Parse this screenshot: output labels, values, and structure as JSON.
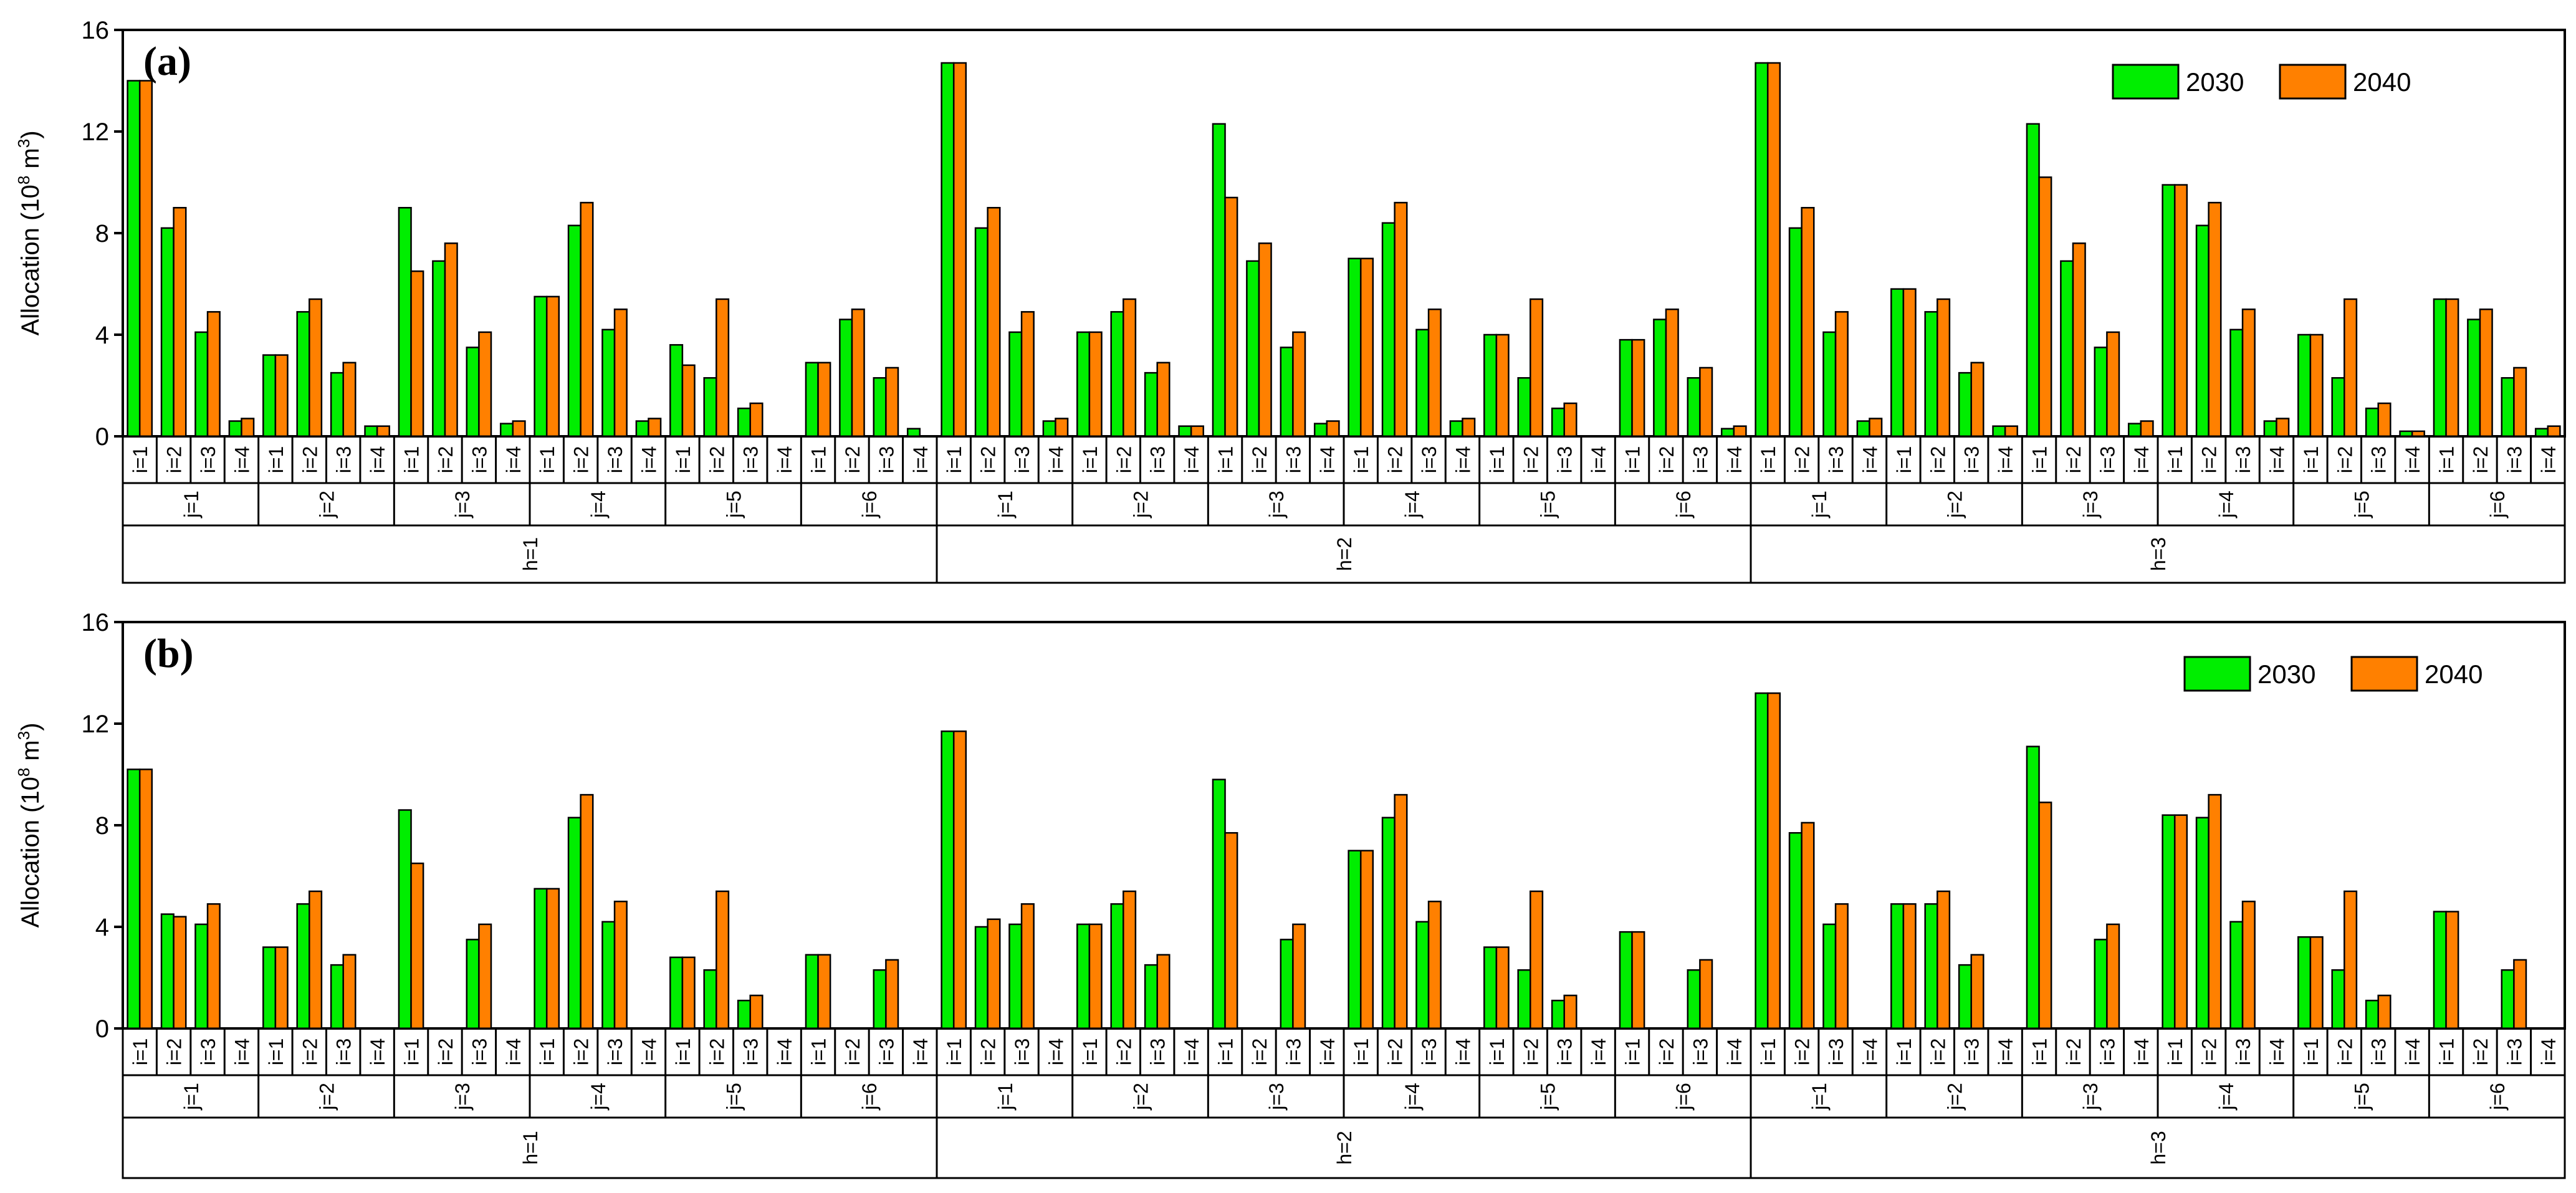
{
  "colors": {
    "series_2030": "#00ee00",
    "series_2040": "#ff8000",
    "axis": "#000000"
  },
  "chart_data": [
    {
      "type": "bar",
      "panel_label": "(a)",
      "ylabel": "Allocation (10",
      "ylabel_sup": "8",
      "ylabel_unit_tail": " m",
      "ylabel_unit_sup": "3",
      "ylabel_close": ")",
      "ylim": [
        0,
        16
      ],
      "yticks": [
        0,
        4,
        8,
        12,
        16
      ],
      "legend_position": "top-right",
      "h_labels": [
        "h=1",
        "h=2",
        "h=3"
      ],
      "j_labels": [
        "j=1",
        "j=2",
        "j=3",
        "j=4",
        "j=5",
        "j=6"
      ],
      "i_labels": [
        "i=1",
        "i=2",
        "i=3",
        "i=4"
      ],
      "series": [
        {
          "name": "2030",
          "values": [
            14.0,
            8.2,
            4.1,
            0.6,
            3.2,
            4.9,
            2.5,
            0.4,
            9.0,
            6.9,
            3.5,
            0.5,
            5.5,
            8.3,
            4.2,
            0.6,
            3.6,
            2.3,
            1.1,
            0.0,
            2.9,
            4.6,
            2.3,
            0.3,
            14.7,
            8.2,
            4.1,
            0.6,
            4.1,
            4.9,
            2.5,
            0.4,
            12.3,
            6.9,
            3.5,
            0.5,
            7.0,
            8.4,
            4.2,
            0.6,
            4.0,
            2.3,
            1.1,
            0.0,
            3.8,
            4.6,
            2.3,
            0.3,
            14.7,
            8.2,
            4.1,
            0.6,
            5.8,
            4.9,
            2.5,
            0.4,
            12.3,
            6.9,
            3.5,
            0.5,
            9.9,
            8.3,
            4.2,
            0.6,
            4.0,
            2.3,
            1.1,
            0.2,
            5.4,
            4.6,
            2.3,
            0.3
          ]
        },
        {
          "name": "2040",
          "values": [
            14.0,
            9.0,
            4.9,
            0.7,
            3.2,
            5.4,
            2.9,
            0.4,
            6.5,
            7.6,
            4.1,
            0.6,
            5.5,
            9.2,
            5.0,
            0.7,
            2.8,
            5.4,
            1.3,
            0.0,
            2.9,
            5.0,
            2.7,
            0.0,
            14.7,
            9.0,
            4.9,
            0.7,
            4.1,
            5.4,
            2.9,
            0.4,
            9.4,
            7.6,
            4.1,
            0.6,
            7.0,
            9.2,
            5.0,
            0.7,
            4.0,
            5.4,
            1.3,
            0.0,
            3.8,
            5.0,
            2.7,
            0.4,
            14.7,
            9.0,
            4.9,
            0.7,
            5.8,
            5.4,
            2.9,
            0.4,
            10.2,
            7.6,
            4.1,
            0.6,
            9.9,
            9.2,
            5.0,
            0.7,
            4.0,
            5.4,
            1.3,
            0.2,
            5.4,
            5.0,
            2.7,
            0.4
          ]
        }
      ]
    },
    {
      "type": "bar",
      "panel_label": "(b)",
      "ylabel": "Allocation (10",
      "ylabel_sup": "8",
      "ylabel_unit_tail": " m",
      "ylabel_unit_sup": "3",
      "ylabel_close": ")",
      "ylim": [
        0,
        16
      ],
      "yticks": [
        0,
        4,
        8,
        12,
        16
      ],
      "legend_position": "top-right",
      "h_labels": [
        "h=1",
        "h=2",
        "h=3"
      ],
      "j_labels": [
        "j=1",
        "j=2",
        "j=3",
        "j=4",
        "j=5",
        "j=6"
      ],
      "i_labels": [
        "i=1",
        "i=2",
        "i=3",
        "i=4"
      ],
      "series": [
        {
          "name": "2030",
          "values": [
            10.2,
            4.5,
            4.1,
            0.0,
            3.2,
            4.9,
            2.5,
            0.0,
            8.6,
            0.0,
            3.5,
            0.0,
            5.5,
            8.3,
            4.2,
            0.0,
            2.8,
            2.3,
            1.1,
            0.0,
            2.9,
            0.0,
            2.3,
            0.0,
            11.7,
            4.0,
            4.1,
            0.0,
            4.1,
            4.9,
            2.5,
            0.0,
            9.8,
            0.0,
            3.5,
            0.0,
            7.0,
            8.3,
            4.2,
            0.0,
            3.2,
            2.3,
            1.1,
            0.0,
            3.8,
            0.0,
            2.3,
            0.0,
            13.2,
            7.7,
            4.1,
            0.0,
            4.9,
            4.9,
            2.5,
            0.0,
            11.1,
            0.0,
            3.5,
            0.0,
            8.4,
            8.3,
            4.2,
            0.0,
            3.6,
            2.3,
            1.1,
            0.0,
            4.6,
            0.0,
            2.3,
            0.0
          ]
        },
        {
          "name": "2040",
          "values": [
            10.2,
            4.4,
            4.9,
            0.0,
            3.2,
            5.4,
            2.9,
            0.0,
            6.5,
            0.0,
            4.1,
            0.0,
            5.5,
            9.2,
            5.0,
            0.0,
            2.8,
            5.4,
            1.3,
            0.0,
            2.9,
            0.0,
            2.7,
            0.0,
            11.7,
            4.3,
            4.9,
            0.0,
            4.1,
            5.4,
            2.9,
            0.0,
            7.7,
            0.0,
            4.1,
            0.0,
            7.0,
            9.2,
            5.0,
            0.0,
            3.2,
            5.4,
            1.3,
            0.0,
            3.8,
            0.0,
            2.7,
            0.0,
            13.2,
            8.1,
            4.9,
            0.0,
            4.9,
            5.4,
            2.9,
            0.0,
            8.9,
            0.0,
            4.1,
            0.0,
            8.4,
            9.2,
            5.0,
            0.0,
            3.6,
            5.4,
            1.3,
            0.0,
            4.6,
            0.0,
            2.7,
            0.0
          ]
        }
      ]
    }
  ]
}
